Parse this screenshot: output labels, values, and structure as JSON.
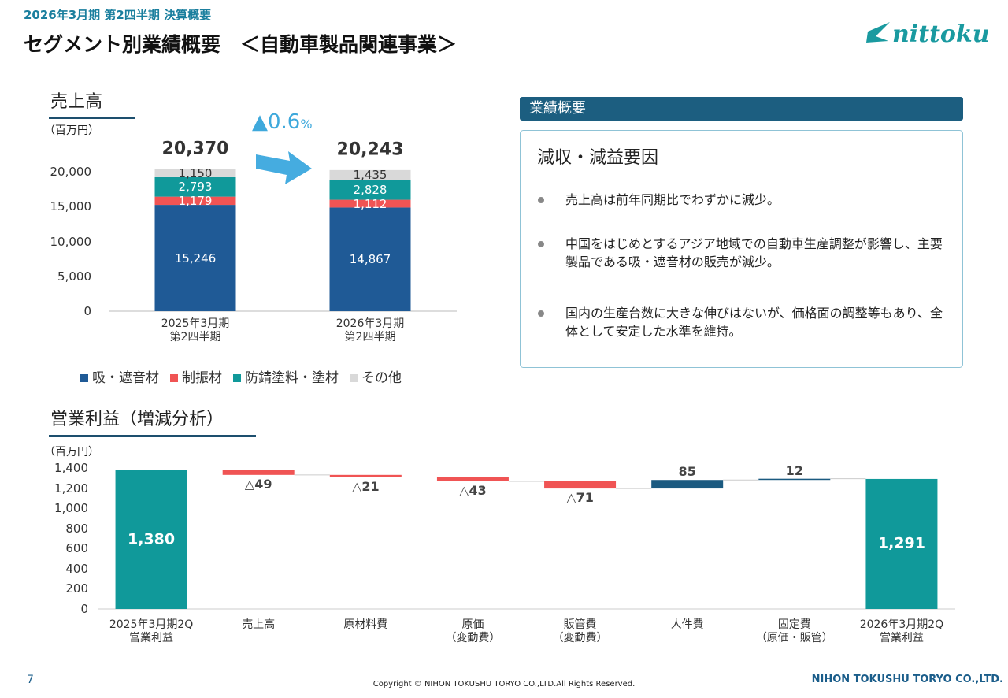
{
  "header": {
    "period": "2026年3月期 第2四半期 決算概要",
    "title": "セグメント別業績概要　＜自動車製品関連事業＞",
    "logo": "nittoku"
  },
  "chart_data": [
    {
      "type": "stacked_bar",
      "title": "売上高",
      "unit_label": "（百万円）",
      "categories": [
        "2025年3月期\n第2四半期",
        "2026年3月期\n第2四半期"
      ],
      "totals": [
        20370,
        20243
      ],
      "total_labels": [
        "20,370",
        "20,243"
      ],
      "change": "▲0.6",
      "change_unit": "%",
      "series": [
        {
          "name": "吸・遮音材",
          "color": "#1f5a96",
          "values": [
            15246,
            14867
          ],
          "value_labels": [
            "15,246",
            "14,867"
          ]
        },
        {
          "name": "制振材",
          "color": "#f05454",
          "values": [
            1179,
            1112
          ],
          "value_labels": [
            "1,179",
            "1,112"
          ]
        },
        {
          "name": "防錆塗料・塗材",
          "color": "#10999a",
          "values": [
            2793,
            2828
          ],
          "value_labels": [
            "2,793",
            "2,828"
          ]
        },
        {
          "name": "その他",
          "color": "#d9d9d9",
          "values": [
            1150,
            1435
          ],
          "value_labels": [
            "1,150",
            "1,435"
          ]
        }
      ],
      "ylim": [
        0,
        22000
      ],
      "yticks": [
        0,
        {
          "value": 5000,
          "label": "5,000"
        },
        {
          "value": 10000,
          "label": "10,000"
        },
        {
          "value": 15000,
          "label": "15,000"
        },
        {
          "value": 20000,
          "label": "20,000"
        }
      ],
      "legend": "bottom"
    },
    {
      "type": "waterfall",
      "title": "営業利益（増減分析）",
      "unit_label": "（百万円）",
      "categories": [
        "2025年3月期2Q\n営業利益",
        "売上高",
        "原材料費",
        "原価\n（変動費）",
        "販管費\n（変動費）",
        "人件費",
        "固定費\n（原価・販管）",
        "2026年3月期2Q\n営業利益"
      ],
      "values": [
        1380,
        -49,
        -21,
        -43,
        -71,
        85,
        12,
        1291
      ],
      "value_labels": [
        "1,380",
        "△49",
        "△21",
        "△43",
        "△71",
        "85",
        "12",
        "1,291"
      ],
      "measure": [
        "absolute",
        "relative",
        "relative",
        "relative",
        "relative",
        "relative",
        "relative",
        "total"
      ],
      "colors": {
        "total": "#10999a",
        "decrease": "#f05454",
        "increase": "#1b5a80"
      },
      "ylim": [
        0,
        1400
      ],
      "yticks": [
        0,
        200,
        400,
        600,
        800,
        {
          "value": 1000,
          "label": "1,000"
        },
        {
          "value": 1200,
          "label": "1,200"
        },
        {
          "value": 1400,
          "label": "1,400"
        }
      ]
    }
  ],
  "summary": {
    "heading": "業績概要",
    "subtitle": "減収・減益要因",
    "bullets": [
      "売上高は前年同期比でわずかに減少。",
      "中国をはじめとするアジア地域での自動車生産調整が影響し、主要製品である吸・遮音材の販売が減少。",
      "国内の生産台数に大きな伸びはないが、価格面の調整等もあり、全体として安定した水準を維持。"
    ]
  },
  "footer": {
    "page": "7",
    "copyright": "Copyright © NIHON TOKUSHU TORYO CO.,LTD.All Rights Reserved.",
    "company": "NIHON TOKUSHU TORYO CO.,LTD."
  }
}
